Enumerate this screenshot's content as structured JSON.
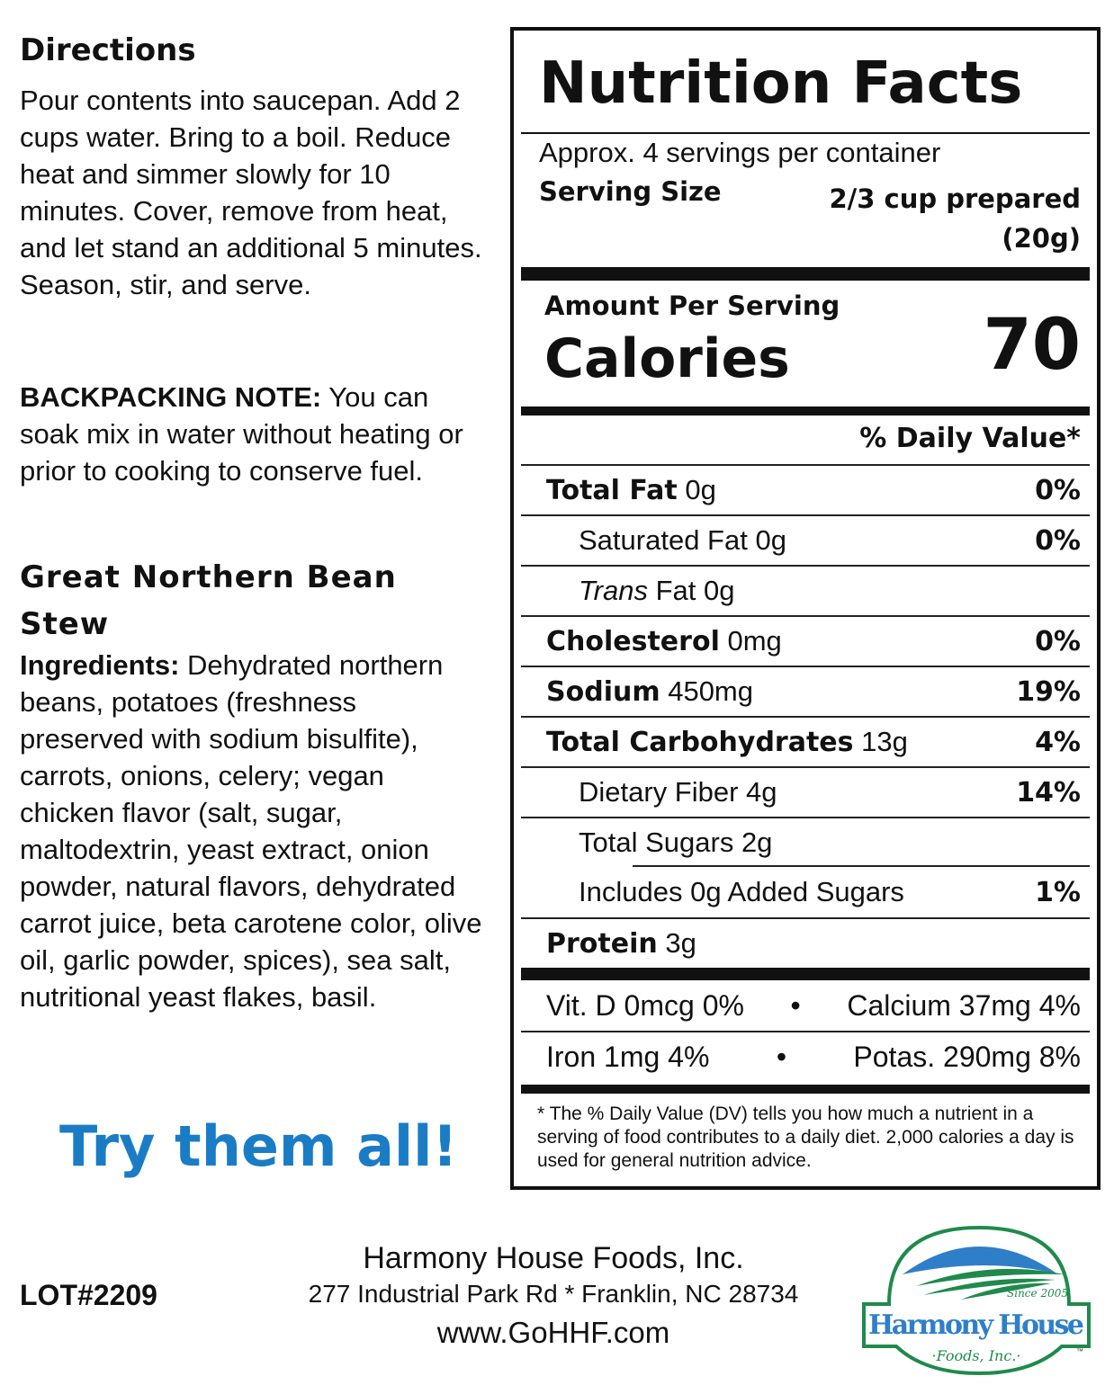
{
  "directions": {
    "title": "Directions",
    "text": "Pour contents into saucepan. Add 2 cups water. Bring to a boil. Reduce heat and simmer slowly for 10 minutes. Cover, remove from heat, and let stand an additional 5 minutes. Season, stir, and serve."
  },
  "backpacking": {
    "label": "BACKPACKING NOTE:",
    "text": " You can soak mix in water without heating or prior to cooking to conserve fuel."
  },
  "product": {
    "name": "Great Northern Bean Stew",
    "ingredients_label": "Ingredients:",
    "ingredients": " Dehydrated northern beans, potatoes (freshness preserved with sodium bisulfite), carrots, onions, celery; vegan chicken flavor (salt, sugar, maltodextrin, yeast extract, onion powder, natural flavors, dehydrated carrot juice, beta carotene color, olive oil, garlic powder, spices), sea salt, nutritional yeast flakes, basil."
  },
  "promo": {
    "text": "Try them all!",
    "color": "#1b7cc6"
  },
  "nutrition": {
    "title": "Nutrition Facts",
    "servings": "Approx. 4 servings per container",
    "serving_size_label": "Serving Size",
    "serving_size_value": "2/3 cup prepared",
    "serving_size_grams": "(20g)",
    "amount_per_serving": "Amount Per Serving",
    "calories_label": "Calories",
    "calories": "70",
    "dv_header": "% Daily Value*",
    "rows": [
      {
        "label": "Total Fat",
        "value": " 0g",
        "dv": "0%",
        "bold": true,
        "indent": 0
      },
      {
        "label": "Saturated Fat",
        "value": " 0g",
        "dv": "0%",
        "bold": false,
        "indent": 1
      },
      {
        "label": "Trans",
        "value": " Fat 0g",
        "dv": "",
        "bold": false,
        "indent": 1,
        "italic": true
      },
      {
        "label": "Cholesterol",
        "value": " 0mg",
        "dv": "0%",
        "bold": true,
        "indent": 0
      },
      {
        "label": "Sodium",
        "value": " 450mg",
        "dv": "19%",
        "bold": true,
        "indent": 0
      },
      {
        "label": "Total Carbohydrates",
        "value": " 13g",
        "dv": "4%",
        "bold": true,
        "indent": 0
      },
      {
        "label": "Dietary Fiber",
        "value": " 4g",
        "dv": "14%",
        "bold": false,
        "indent": 1
      },
      {
        "label": "Total Sugars",
        "value": " 2g",
        "dv": "",
        "bold": false,
        "indent": 1
      },
      {
        "label": "Includes 0g Added Sugars",
        "value": "",
        "dv": "1%",
        "bold": false,
        "indent": 2
      },
      {
        "label": "Protein",
        "value": " 3g",
        "dv": "",
        "bold": true,
        "indent": 0
      }
    ],
    "vitamins": [
      {
        "left": "Vit. D 0mcg 0%",
        "right": "Calcium 37mg 4%"
      },
      {
        "left": "Iron 1mg 4%",
        "right": "Potas. 290mg 8%"
      }
    ],
    "bullet": "•",
    "footnote": "* The % Daily Value (DV) tells you how much a nutrient in a serving of food contributes to a daily diet. 2,000 calories a day is used for general nutrition advice."
  },
  "footer": {
    "lot": "LOT#2209",
    "company": "Harmony House Foods, Inc.",
    "address": "277 Industrial Park Rd * Franklin, NC 28734",
    "website": "www.GoHHF.com"
  },
  "logo": {
    "name": "Harmony House",
    "since": "Since 2005",
    "sub": "·Foods, Inc.·",
    "tm": "™",
    "green": "#1f8a4c",
    "blue": "#2f7fc8"
  }
}
